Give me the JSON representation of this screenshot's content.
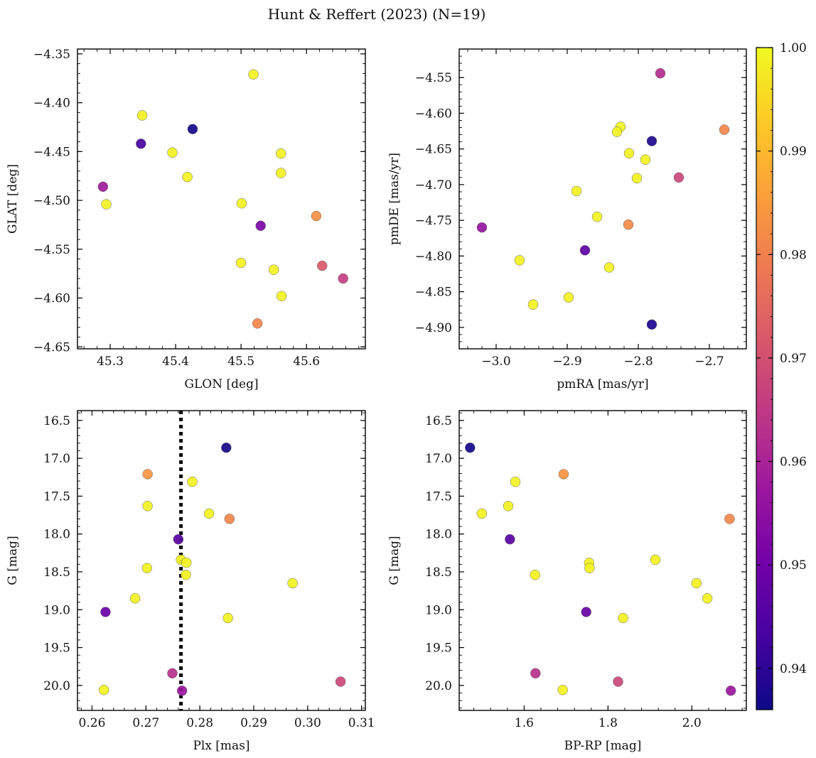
{
  "figure": {
    "title": "Hunt & Reffert (2023) (N=19)"
  },
  "colormap": {
    "name": "plasma",
    "min": 0.936,
    "max": 1.0,
    "ticks": [
      0.94,
      0.95,
      0.96,
      0.97,
      0.98,
      0.99,
      1.0
    ],
    "tick_labels": [
      "0.94",
      "0.95",
      "0.96",
      "0.97",
      "0.98",
      "0.99",
      "1.00"
    ],
    "stops": [
      "#0d0887",
      "#46039f",
      "#7201a8",
      "#9c179e",
      "#bd3786",
      "#d8576b",
      "#ed7953",
      "#fb9f3a",
      "#fdca26",
      "#f0f921"
    ]
  },
  "chart_data": [
    {
      "type": "scatter",
      "id": "glon-glat",
      "xlabel": "GLON [deg]",
      "ylabel": "GLAT [deg]",
      "xlim": [
        45.25,
        45.69
      ],
      "ylim": [
        -4.652,
        -4.345
      ],
      "xticks": [
        45.3,
        45.4,
        45.5,
        45.6
      ],
      "xtick_labels": [
        "45.3",
        "45.4",
        "45.5",
        "45.6"
      ],
      "yticks": [
        -4.35,
        -4.4,
        -4.45,
        -4.5,
        -4.55,
        -4.6,
        -4.65
      ],
      "ytick_labels": [
        "−4.35",
        "−4.40",
        "−4.45",
        "−4.50",
        "−4.55",
        "−4.60",
        "−4.65"
      ],
      "x": [
        45.519,
        45.349,
        45.426,
        45.347,
        45.395,
        45.561,
        45.418,
        45.561,
        45.289,
        45.294,
        45.501,
        45.615,
        45.53,
        45.5,
        45.55,
        45.624,
        45.562,
        45.656,
        45.525
      ],
      "y": [
        -4.371,
        -4.413,
        -4.427,
        -4.442,
        -4.451,
        -4.452,
        -4.476,
        -4.472,
        -4.486,
        -4.504,
        -4.503,
        -4.516,
        -4.526,
        -4.564,
        -4.571,
        -4.567,
        -4.598,
        -4.58,
        -4.626
      ],
      "c": [
        0.999,
        0.999,
        0.937,
        0.943,
        0.999,
        0.999,
        0.999,
        0.999,
        0.958,
        0.999,
        0.999,
        0.983,
        0.952,
        0.999,
        0.999,
        0.972,
        0.999,
        0.966,
        0.981
      ]
    },
    {
      "type": "scatter",
      "id": "pmra-pmde",
      "xlabel": "pmRA [mas/yr]",
      "ylabel": "pmDE [mas/yr]",
      "xlim": [
        -3.052,
        -2.648
      ],
      "ylim": [
        -4.93,
        -4.51
      ],
      "xticks": [
        -3.0,
        -2.9,
        -2.8,
        -2.7
      ],
      "xtick_labels": [
        "−3.0",
        "−2.9",
        "−2.8",
        "−2.7"
      ],
      "yticks": [
        -4.55,
        -4.6,
        -4.65,
        -4.7,
        -4.75,
        -4.8,
        -4.85,
        -4.9
      ],
      "ytick_labels": [
        "−4.55",
        "−4.60",
        "−4.65",
        "−4.70",
        "−4.75",
        "−4.80",
        "−4.85",
        "−4.90"
      ],
      "x": [
        -2.769,
        -2.825,
        -2.83,
        -2.679,
        -2.781,
        -2.813,
        -2.79,
        -2.802,
        -2.743,
        -2.887,
        -2.858,
        -2.814,
        -3.02,
        -2.875,
        -2.967,
        -2.841,
        -2.898,
        -2.948,
        -2.781
      ],
      "y": [
        -4.544,
        -4.619,
        -4.626,
        -4.623,
        -4.639,
        -4.656,
        -4.665,
        -4.691,
        -4.69,
        -4.709,
        -4.745,
        -4.756,
        -4.76,
        -4.792,
        -4.806,
        -4.816,
        -4.858,
        -4.868,
        -4.896
      ],
      "c": [
        0.962,
        0.999,
        0.999,
        0.981,
        0.938,
        0.999,
        0.999,
        0.999,
        0.968,
        0.999,
        0.999,
        0.982,
        0.956,
        0.947,
        0.999,
        0.999,
        0.999,
        0.999,
        0.938
      ]
    },
    {
      "type": "scatter",
      "id": "plx-g",
      "xlabel": "Plx [mas]",
      "ylabel": "G [mag]",
      "xlim": [
        0.2573,
        0.3107
      ],
      "ylim": [
        20.33,
        16.37
      ],
      "invert_y": true,
      "xticks": [
        0.26,
        0.27,
        0.28,
        0.29,
        0.3,
        0.31
      ],
      "xtick_labels": [
        "0.26",
        "0.27",
        "0.28",
        "0.29",
        "0.30",
        "0.31"
      ],
      "yticks": [
        16.5,
        17.0,
        17.5,
        18.0,
        18.5,
        19.0,
        19.5,
        20.0
      ],
      "ytick_labels": [
        "16.5",
        "17.0",
        "17.5",
        "18.0",
        "18.5",
        "19.0",
        "19.5",
        "20.0"
      ],
      "vline": {
        "x": 0.2765,
        "style": "dotted",
        "color": "#000000"
      },
      "x": [
        0.2849,
        0.2703,
        0.2786,
        0.2703,
        0.2817,
        0.2855,
        0.276,
        0.2765,
        0.2775,
        0.2774,
        0.2702,
        0.2972,
        0.268,
        0.2625,
        0.2852,
        0.2749,
        0.2622,
        0.3061,
        0.2767
      ],
      "y": [
        16.86,
        17.21,
        17.31,
        17.63,
        17.73,
        17.8,
        18.07,
        18.34,
        18.38,
        18.54,
        18.45,
        18.65,
        18.85,
        19.03,
        19.11,
        19.84,
        20.06,
        19.95,
        20.07
      ],
      "c": [
        0.937,
        0.984,
        0.999,
        0.999,
        0.999,
        0.981,
        0.946,
        0.999,
        0.999,
        0.999,
        0.999,
        0.999,
        0.999,
        0.949,
        0.999,
        0.963,
        0.999,
        0.968,
        0.957
      ]
    },
    {
      "type": "scatter",
      "id": "bprp-g",
      "xlabel": "BP-RP [mag]",
      "ylabel": "G [mag]",
      "xlim": [
        1.445,
        2.13
      ],
      "ylim": [
        20.33,
        16.37
      ],
      "invert_y": true,
      "xticks": [
        1.6,
        1.8,
        2.0
      ],
      "xtick_labels": [
        "1.6",
        "1.8",
        "2.0"
      ],
      "yticks": [
        16.5,
        17.0,
        17.5,
        18.0,
        18.5,
        19.0,
        19.5,
        20.0
      ],
      "ytick_labels": [
        "16.5",
        "17.0",
        "17.5",
        "18.0",
        "18.5",
        "19.0",
        "19.5",
        "20.0"
      ],
      "x": [
        1.471,
        1.694,
        1.579,
        1.562,
        1.499,
        2.09,
        1.566,
        1.755,
        1.756,
        1.626,
        1.913,
        2.011,
        2.037,
        1.748,
        1.836,
        1.627,
        1.692,
        1.824,
        2.093
      ],
      "y": [
        16.86,
        17.21,
        17.31,
        17.63,
        17.73,
        17.8,
        18.07,
        18.38,
        18.45,
        18.54,
        18.34,
        18.65,
        18.85,
        19.03,
        19.11,
        19.84,
        20.06,
        19.95,
        20.07
      ],
      "c": [
        0.937,
        0.984,
        0.999,
        0.999,
        0.999,
        0.981,
        0.946,
        0.999,
        0.999,
        0.999,
        0.999,
        0.999,
        0.999,
        0.949,
        0.999,
        0.963,
        0.999,
        0.968,
        0.957
      ]
    }
  ]
}
